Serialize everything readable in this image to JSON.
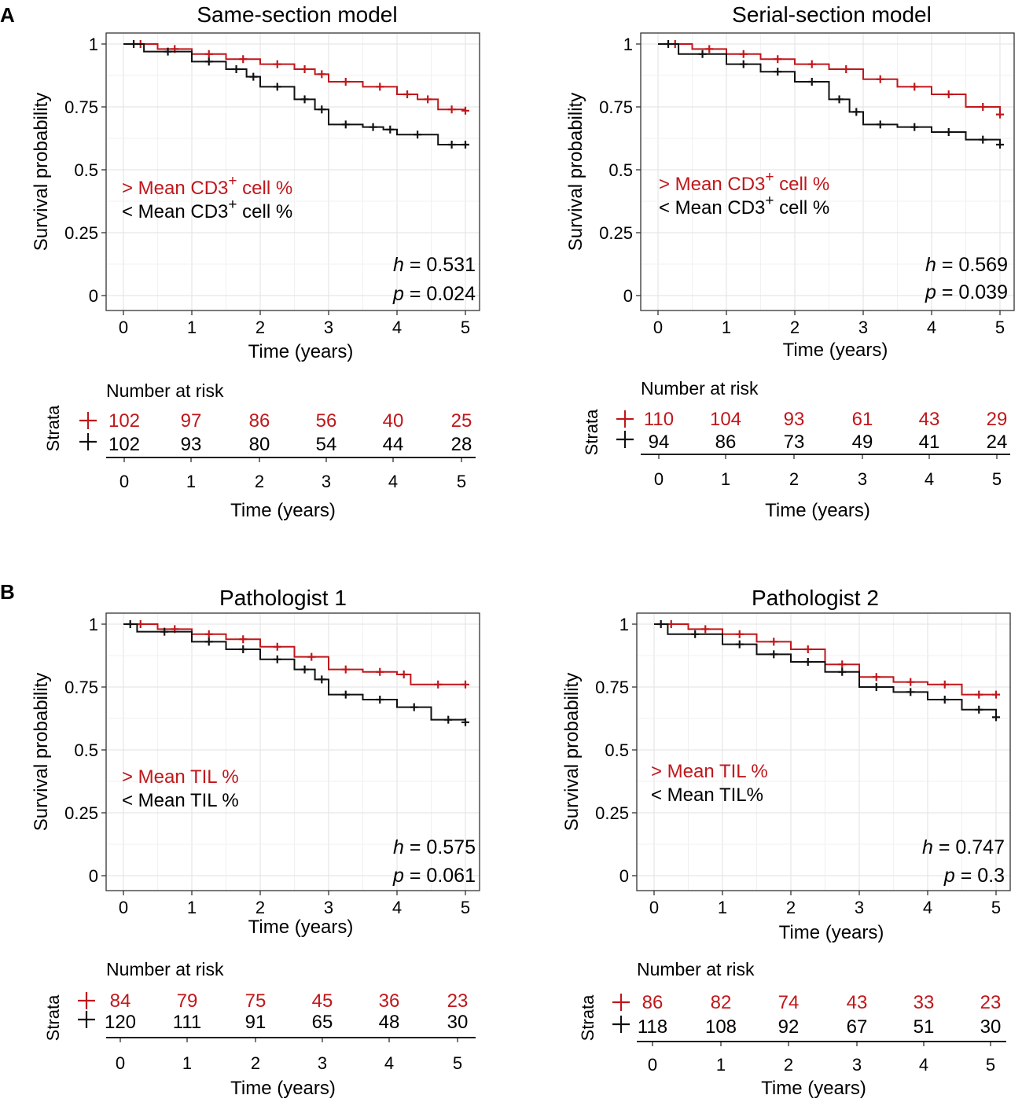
{
  "panel_labels": [
    "A",
    "B"
  ],
  "colors": {
    "high": "#c0171b",
    "low": "#111111",
    "grid": "#e6e6e6"
  },
  "chart_data": [
    {
      "type": "line",
      "title": "Same-section model",
      "xlabel": "Time (years)",
      "ylabel": "Survival probability",
      "xlim": [
        0,
        5
      ],
      "ylim": [
        0,
        1
      ],
      "xticks": [
        "0",
        "1",
        "2",
        "3",
        "4",
        "5"
      ],
      "yticks": [
        "0",
        "0.25",
        "0.5",
        "0.75",
        "1"
      ],
      "legend_text": {
        "high_pre": "> Mean CD3",
        "high_sup": "+",
        "high_post": " cell %",
        "low_pre": "< Mean CD3",
        "low_sup": "+",
        "low_post": " cell %"
      },
      "stats": {
        "h_label": "h",
        "h_value": " = 0.531",
        "p_label": "p",
        "p_value": " = 0.024"
      },
      "series": [
        {
          "name": "> Mean CD3+ cell %",
          "color": "#c0171b",
          "x": [
            0,
            0.5,
            1.0,
            1.5,
            2.0,
            2.5,
            2.8,
            3.0,
            3.5,
            4.0,
            4.3,
            4.6,
            5.0
          ],
          "values": [
            1,
            0.98,
            0.96,
            0.94,
            0.92,
            0.9,
            0.88,
            0.85,
            0.83,
            0.8,
            0.78,
            0.74,
            0.735
          ]
        },
        {
          "name": "< Mean CD3+ cell %",
          "color": "#111111",
          "x": [
            0,
            0.3,
            1.0,
            1.5,
            1.8,
            2.0,
            2.5,
            2.8,
            3.0,
            3.5,
            3.8,
            4.0,
            4.6,
            5.0
          ],
          "values": [
            1,
            0.97,
            0.93,
            0.9,
            0.87,
            0.83,
            0.78,
            0.74,
            0.68,
            0.67,
            0.66,
            0.64,
            0.6,
            0.6
          ]
        }
      ],
      "risk_table": {
        "title": "Number at risk",
        "strata_label": "Strata",
        "x": [
          "0",
          "1",
          "2",
          "3",
          "4",
          "5"
        ],
        "high": [
          "102",
          "97",
          "86",
          "56",
          "40",
          "25"
        ],
        "low": [
          "102",
          "93",
          "80",
          "54",
          "44",
          "28"
        ],
        "xlabel": "Time (years)"
      }
    },
    {
      "type": "line",
      "title": "Serial-section model",
      "xlabel": "Time (years)",
      "ylabel": "Survival probability",
      "xlim": [
        0,
        5
      ],
      "ylim": [
        0,
        1
      ],
      "xticks": [
        "0",
        "1",
        "2",
        "3",
        "4",
        "5"
      ],
      "yticks": [
        "0",
        "0.25",
        "0.5",
        "0.75",
        "1"
      ],
      "legend_text": {
        "high_pre": "> Mean CD3",
        "high_sup": "+",
        "high_post": " cell %",
        "low_pre": "< Mean CD3",
        "low_sup": "+",
        "low_post": " cell %"
      },
      "stats": {
        "h_label": "h",
        "h_value": " = 0.569",
        "p_label": "p",
        "p_value": " = 0.039"
      },
      "series": [
        {
          "name": "> Mean CD3+ cell %",
          "color": "#c0171b",
          "x": [
            0,
            0.5,
            1.0,
            1.5,
            2.0,
            2.5,
            3.0,
            3.5,
            4.0,
            4.5,
            5.0
          ],
          "values": [
            1,
            0.98,
            0.96,
            0.94,
            0.92,
            0.9,
            0.86,
            0.83,
            0.8,
            0.75,
            0.72
          ]
        },
        {
          "name": "< Mean CD3+ cell %",
          "color": "#111111",
          "x": [
            0,
            0.3,
            1.0,
            1.5,
            2.0,
            2.5,
            2.8,
            3.0,
            3.5,
            4.0,
            4.5,
            5.0
          ],
          "values": [
            1,
            0.96,
            0.92,
            0.89,
            0.85,
            0.78,
            0.73,
            0.68,
            0.67,
            0.65,
            0.62,
            0.6
          ]
        }
      ],
      "risk_table": {
        "title": "Number at risk",
        "strata_label": "Strata",
        "x": [
          "0",
          "1",
          "2",
          "3",
          "4",
          "5"
        ],
        "high": [
          "110",
          "104",
          "93",
          "61",
          "43",
          "29"
        ],
        "low": [
          "94",
          "86",
          "73",
          "49",
          "41",
          "24"
        ],
        "xlabel": "Time (years)"
      }
    },
    {
      "type": "line",
      "title": "Pathologist 1",
      "xlabel": "Time (years)",
      "ylabel": "Survival probability",
      "xlim": [
        0,
        5
      ],
      "ylim": [
        0,
        1
      ],
      "xticks": [
        "0",
        "1",
        "2",
        "3",
        "4",
        "5"
      ],
      "yticks": [
        "0",
        "0.25",
        "0.5",
        "0.75",
        "1"
      ],
      "legend_text": {
        "high_pre": "> Mean TIL %",
        "high_sup": "",
        "high_post": "",
        "low_pre": "< Mean TIL %",
        "low_sup": "",
        "low_post": ""
      },
      "stats": {
        "h_label": "h",
        "h_value": "  = 0.575",
        "p_label": "p",
        "p_value": " = 0.061"
      },
      "series": [
        {
          "name": "> Mean TIL %",
          "color": "#c0171b",
          "x": [
            0,
            0.5,
            1.0,
            1.5,
            2.0,
            2.5,
            3.0,
            3.5,
            4.0,
            4.2,
            5.0
          ],
          "values": [
            1,
            0.98,
            0.96,
            0.94,
            0.91,
            0.87,
            0.82,
            0.81,
            0.8,
            0.76,
            0.76
          ]
        },
        {
          "name": "< Mean TIL %",
          "color": "#111111",
          "x": [
            0,
            0.2,
            1.0,
            1.5,
            2.0,
            2.5,
            2.8,
            3.0,
            3.5,
            4.0,
            4.5,
            5.0
          ],
          "values": [
            1,
            0.97,
            0.93,
            0.9,
            0.86,
            0.82,
            0.78,
            0.72,
            0.7,
            0.67,
            0.62,
            0.61
          ]
        }
      ],
      "risk_table": {
        "title": "Number at risk",
        "strata_label": "Strata",
        "x": [
          "0",
          "1",
          "2",
          "3",
          "4",
          "5"
        ],
        "high": [
          "84",
          "79",
          "75",
          "45",
          "36",
          "23"
        ],
        "low": [
          "120",
          "111",
          "91",
          "65",
          "48",
          "30"
        ],
        "xlabel": "Time (years)"
      }
    },
    {
      "type": "line",
      "title": "Pathologist 2",
      "xlabel": "Time (years)",
      "ylabel": "Survival probability",
      "xlim": [
        0,
        5
      ],
      "ylim": [
        0,
        1
      ],
      "xticks": [
        "0",
        "1",
        "2",
        "3",
        "4",
        "5"
      ],
      "yticks": [
        "0",
        "0.25",
        "0.5",
        "0.75",
        "1"
      ],
      "legend_text": {
        "high_pre": "> Mean TIL %",
        "high_sup": "",
        "high_post": "",
        "low_pre": "< Mean TIL%",
        "low_sup": "",
        "low_post": ""
      },
      "stats": {
        "h_label": "h",
        "h_value": "  = 0.747",
        "p_label": "p",
        "p_value": " = 0.3"
      },
      "series": [
        {
          "name": "> Mean TIL %",
          "color": "#c0171b",
          "x": [
            0,
            0.5,
            1.0,
            1.5,
            2.0,
            2.5,
            3.0,
            3.5,
            4.0,
            4.5,
            5.0
          ],
          "values": [
            1,
            0.98,
            0.96,
            0.93,
            0.9,
            0.84,
            0.79,
            0.77,
            0.76,
            0.72,
            0.72
          ]
        },
        {
          "name": "< Mean TIL%",
          "color": "#111111",
          "x": [
            0,
            0.2,
            1.0,
            1.5,
            2.0,
            2.5,
            3.0,
            3.5,
            4.0,
            4.5,
            5.0
          ],
          "values": [
            1,
            0.96,
            0.92,
            0.88,
            0.85,
            0.81,
            0.75,
            0.73,
            0.7,
            0.66,
            0.63
          ]
        }
      ],
      "risk_table": {
        "title": "Number at risk",
        "strata_label": "Strata",
        "x": [
          "0",
          "1",
          "2",
          "3",
          "4",
          "5"
        ],
        "high": [
          "86",
          "82",
          "74",
          "43",
          "33",
          "23"
        ],
        "low": [
          "118",
          "108",
          "92",
          "67",
          "51",
          "30"
        ],
        "xlabel": "Time (years)"
      }
    }
  ]
}
